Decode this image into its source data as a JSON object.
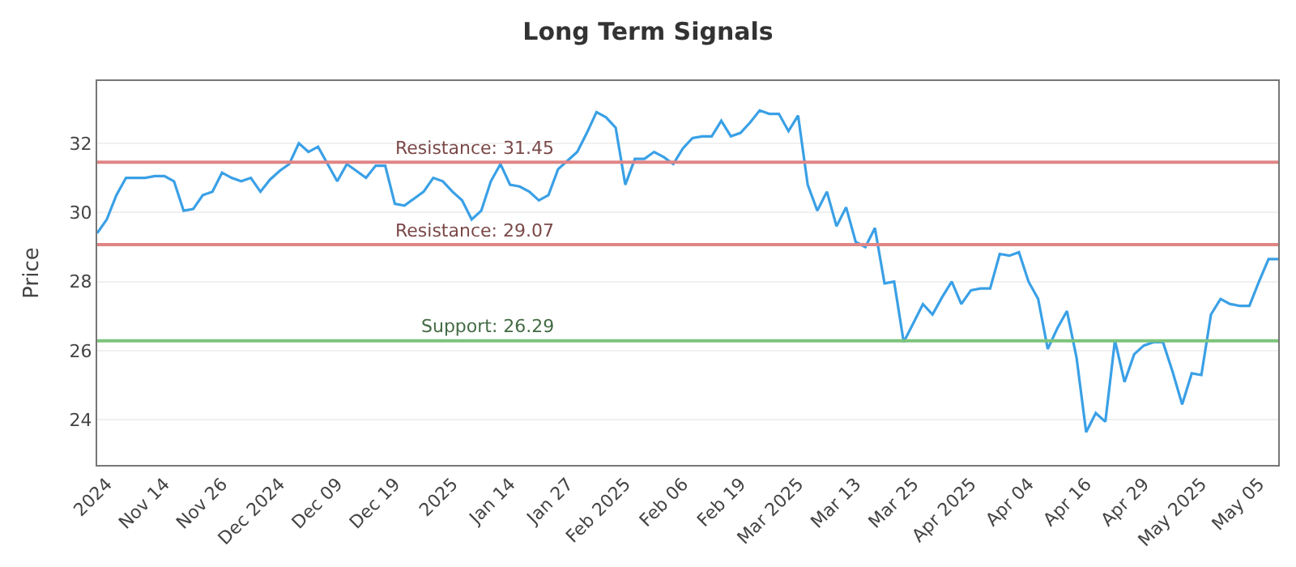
{
  "chart_data": {
    "type": "line",
    "title": "Long Term Signals",
    "ylabel": "Price",
    "categories": [
      null,
      "2024",
      null,
      null,
      null,
      null,
      null,
      "Nov 14",
      null,
      null,
      null,
      null,
      null,
      "Nov 26",
      null,
      null,
      null,
      null,
      null,
      "Dec 2024",
      null,
      null,
      null,
      null,
      null,
      "Dec 09",
      null,
      null,
      null,
      null,
      null,
      "Dec 19",
      null,
      null,
      null,
      null,
      null,
      "2025",
      null,
      null,
      null,
      null,
      null,
      "Jan 14",
      null,
      null,
      null,
      null,
      null,
      "Jan 27",
      null,
      null,
      null,
      null,
      null,
      "Feb 2025",
      null,
      null,
      null,
      null,
      null,
      "Feb 06",
      null,
      null,
      null,
      null,
      null,
      "Feb 19",
      null,
      null,
      null,
      null,
      null,
      "Mar 2025",
      null,
      null,
      null,
      null,
      null,
      "Mar 13",
      null,
      null,
      null,
      null,
      null,
      "Mar 25",
      null,
      null,
      null,
      null,
      null,
      "Apr 2025",
      null,
      null,
      null,
      null,
      null,
      "Apr 04",
      null,
      null,
      null,
      null,
      null,
      "Apr 16",
      null,
      null,
      null,
      null,
      null,
      "Apr 29",
      null,
      null,
      null,
      null,
      null,
      "May 2025",
      null,
      null,
      null,
      null,
      null,
      "May 05",
      null,
      null
    ],
    "series": [
      {
        "color": "#3aa0e6",
        "values": [
          29.4,
          29.8,
          30.5,
          31.0,
          31.0,
          31.0,
          31.05,
          31.05,
          30.9,
          30.05,
          30.1,
          30.5,
          30.6,
          31.15,
          31.0,
          30.9,
          31.0,
          30.6,
          30.95,
          31.2,
          31.4,
          32.0,
          31.75,
          31.9,
          31.4,
          30.9,
          31.4,
          31.2,
          31.0,
          31.35,
          31.35,
          30.25,
          30.2,
          30.4,
          30.6,
          31.0,
          30.9,
          30.6,
          30.35,
          29.8,
          30.05,
          30.9,
          31.4,
          30.8,
          30.75,
          30.6,
          30.35,
          30.5,
          31.25,
          31.5,
          31.75,
          32.3,
          32.9,
          32.75,
          32.45,
          30.8,
          31.55,
          31.55,
          31.75,
          31.6,
          31.4,
          31.85,
          32.15,
          32.2,
          32.2,
          32.65,
          32.2,
          32.3,
          32.6,
          32.95,
          32.85,
          32.85,
          32.35,
          32.8,
          30.8,
          30.05,
          30.6,
          29.6,
          30.15,
          29.15,
          29.0,
          29.55,
          27.95,
          28.0,
          26.25,
          26.8,
          27.35,
          27.05,
          27.55,
          28.0,
          27.35,
          27.75,
          27.8,
          27.8,
          28.8,
          28.75,
          28.85,
          28.0,
          27.5,
          26.05,
          26.65,
          27.15,
          25.8,
          23.65,
          24.2,
          23.95,
          26.3,
          25.1,
          25.9,
          26.15,
          26.25,
          26.25,
          25.4,
          24.45,
          25.35,
          25.3,
          27.05,
          27.5,
          27.35,
          27.3,
          27.3,
          28.0,
          28.65,
          28.65
        ]
      }
    ],
    "ylim": [
      22.7,
      33.8
    ],
    "yticks": [
      24,
      26,
      28,
      30,
      32
    ],
    "grid": "y",
    "marker": "none",
    "line_style": "solid",
    "legend": false,
    "ref_lines": [
      {
        "axis": "y",
        "value": 31.45,
        "label": "Resistance: 31.45",
        "color": "#e08585"
      },
      {
        "axis": "y",
        "value": 29.07,
        "label": "Resistance: 29.07",
        "color": "#e08585"
      },
      {
        "axis": "y",
        "value": 26.29,
        "label": "Support: 26.29",
        "color": "#7cc47c"
      }
    ]
  }
}
